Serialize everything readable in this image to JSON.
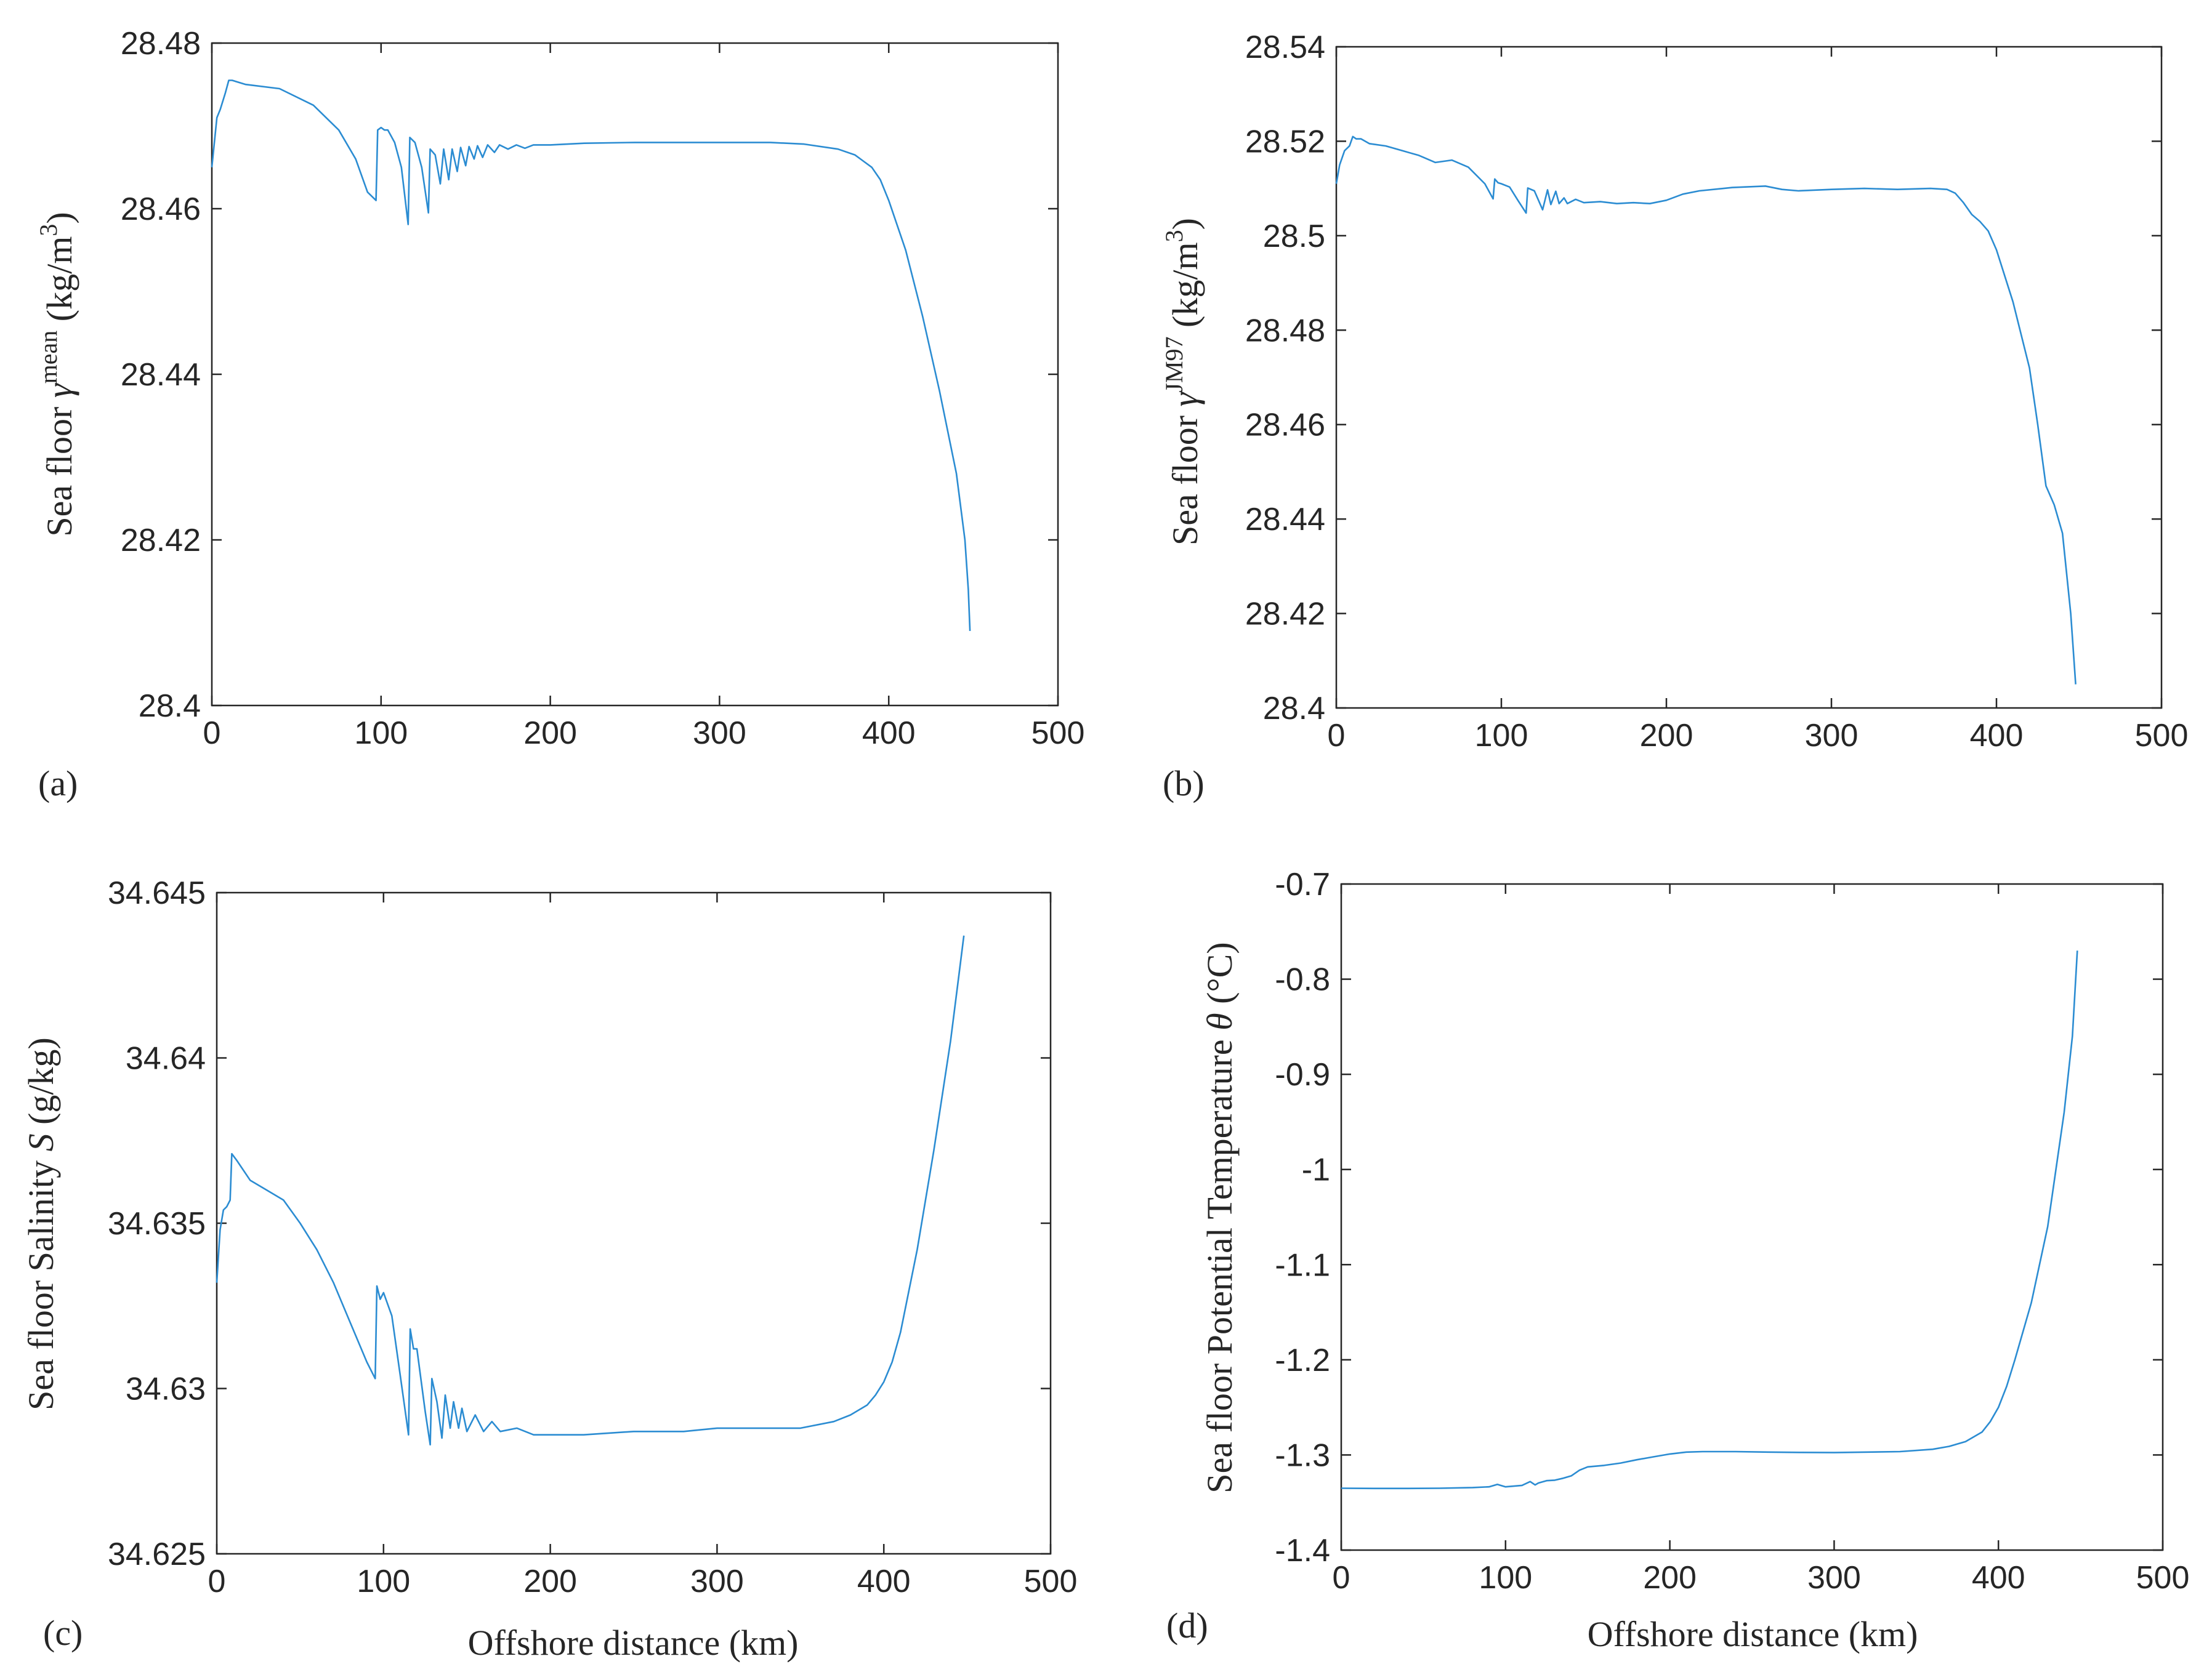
{
  "chart_data": [
    {
      "id": "a",
      "type": "line",
      "panel_label": "(a)",
      "xlabel": "",
      "ylabel_main": "Sea floor ",
      "ylabel_symbol": "γ",
      "ylabel_symbol_sup": "mean",
      "ylabel_unit": " (kg/m",
      "ylabel_unit_sup": "3",
      "ylabel_unit_end": ")",
      "xlim": [
        0,
        500
      ],
      "ylim": [
        28.4,
        28.48
      ],
      "xticks": [
        0,
        100,
        200,
        300,
        400,
        500
      ],
      "xtick_labels": [
        "0",
        "100",
        "200",
        "300",
        "400",
        "500"
      ],
      "yticks": [
        28.4,
        28.42,
        28.44,
        28.46,
        28.48
      ],
      "ytick_labels": [
        "28.4",
        "28.42",
        "28.44",
        "28.46",
        "28.48"
      ],
      "series": [
        {
          "name": "gamma_mean",
          "x": [
            0,
            3,
            5,
            8,
            10,
            12,
            20,
            40,
            60,
            75,
            85,
            92,
            97,
            98,
            100,
            102,
            104,
            108,
            112,
            116,
            117,
            120,
            124,
            128,
            129,
            132,
            135,
            137,
            140,
            142,
            145,
            147,
            150,
            152,
            155,
            157,
            160,
            163,
            167,
            170,
            175,
            180,
            185,
            190,
            200,
            220,
            250,
            300,
            330,
            350,
            370,
            380,
            390,
            395,
            400,
            410,
            420,
            430,
            440,
            445,
            447,
            448
          ],
          "values": [
            28.465,
            28.471,
            28.472,
            28.474,
            28.4755,
            28.4755,
            28.475,
            28.4745,
            28.4725,
            28.4695,
            28.466,
            28.462,
            28.461,
            28.4695,
            28.4698,
            28.4695,
            28.4695,
            28.468,
            28.465,
            28.4581,
            28.4686,
            28.468,
            28.465,
            28.4595,
            28.4672,
            28.4665,
            28.463,
            28.4672,
            28.4635,
            28.4672,
            28.4645,
            28.4674,
            28.4652,
            28.4675,
            28.466,
            28.4676,
            28.4662,
            28.4677,
            28.4668,
            28.4677,
            28.4672,
            28.4677,
            28.4673,
            28.4677,
            28.4677,
            28.4679,
            28.468,
            28.468,
            28.468,
            28.4678,
            28.4672,
            28.4665,
            28.465,
            28.4635,
            28.461,
            28.455,
            28.447,
            28.438,
            28.428,
            28.42,
            28.414,
            28.409
          ]
        }
      ]
    },
    {
      "id": "b",
      "type": "line",
      "panel_label": "(b)",
      "xlabel": "",
      "ylabel_main": "Sea floor ",
      "ylabel_symbol": "γ",
      "ylabel_symbol_sup": "JM97",
      "ylabel_unit": " (kg/m",
      "ylabel_unit_sup": "3",
      "ylabel_unit_end": ")",
      "xlim": [
        0,
        500
      ],
      "ylim": [
        28.4,
        28.54
      ],
      "xticks": [
        0,
        100,
        200,
        300,
        400,
        500
      ],
      "xtick_labels": [
        "0",
        "100",
        "200",
        "300",
        "400",
        "500"
      ],
      "yticks": [
        28.4,
        28.42,
        28.44,
        28.46,
        28.48,
        28.5,
        28.52,
        28.54
      ],
      "ytick_labels": [
        "28.4",
        "28.42",
        "28.44",
        "28.46",
        "28.48",
        "28.5",
        "28.52",
        "28.54"
      ],
      "series": [
        {
          "name": "gamma_JM97",
          "x": [
            0,
            2,
            5,
            8,
            10,
            12,
            15,
            20,
            30,
            40,
            50,
            60,
            70,
            80,
            90,
            95,
            96,
            98,
            100,
            105,
            110,
            115,
            116,
            120,
            125,
            128,
            130,
            133,
            135,
            138,
            140,
            145,
            150,
            160,
            170,
            180,
            190,
            200,
            210,
            220,
            240,
            260,
            270,
            280,
            300,
            320,
            340,
            360,
            370,
            375,
            380,
            385,
            390,
            395,
            400,
            410,
            420,
            425,
            430,
            435,
            440,
            445,
            448
          ],
          "values": [
            28.511,
            28.515,
            28.518,
            28.519,
            28.521,
            28.5205,
            28.5205,
            28.5195,
            28.519,
            28.518,
            28.517,
            28.5155,
            28.516,
            28.5145,
            28.511,
            28.5078,
            28.512,
            28.5112,
            28.511,
            28.5103,
            28.5075,
            28.5048,
            28.5101,
            28.5095,
            28.5055,
            28.5097,
            28.5066,
            28.5094,
            28.5068,
            28.508,
            28.5068,
            28.5077,
            28.507,
            28.5072,
            28.5068,
            28.507,
            28.5068,
            28.5075,
            28.5088,
            28.5095,
            28.5102,
            28.5105,
            28.5098,
            28.5095,
            28.5098,
            28.51,
            28.5098,
            28.51,
            28.5098,
            28.509,
            28.507,
            28.5045,
            28.503,
            28.501,
            28.497,
            28.486,
            28.472,
            28.46,
            28.447,
            28.443,
            28.437,
            28.42,
            28.405
          ]
        }
      ]
    },
    {
      "id": "c",
      "type": "line",
      "panel_label": "(c)",
      "xlabel": "Offshore distance (km)",
      "ylabel_main": "Sea floor Salinity ",
      "ylabel_symbol": "S",
      "ylabel_symbol_sup": "",
      "ylabel_unit": " (g/kg)",
      "ylabel_unit_sup": "",
      "ylabel_unit_end": "",
      "xlim": [
        0,
        500
      ],
      "ylim": [
        34.625,
        34.645
      ],
      "xticks": [
        0,
        100,
        200,
        300,
        400,
        500
      ],
      "xtick_labels": [
        "0",
        "100",
        "200",
        "300",
        "400",
        "500"
      ],
      "yticks": [
        34.625,
        34.63,
        34.635,
        34.64,
        34.645
      ],
      "ytick_labels": [
        "34.625",
        "34.63",
        "34.635",
        "34.64",
        "34.645"
      ],
      "series": [
        {
          "name": "salinity",
          "x": [
            0,
            2,
            4,
            6,
            8,
            9,
            12,
            20,
            30,
            40,
            50,
            60,
            70,
            80,
            90,
            95,
            96,
            98,
            100,
            105,
            110,
            115,
            116,
            118,
            120,
            125,
            128,
            129,
            132,
            135,
            137,
            140,
            142,
            145,
            147,
            150,
            155,
            160,
            165,
            170,
            180,
            190,
            200,
            220,
            250,
            280,
            300,
            330,
            350,
            370,
            380,
            390,
            395,
            400,
            405,
            410,
            420,
            430,
            440,
            445,
            448
          ],
          "values": [
            34.6332,
            34.6348,
            34.6354,
            34.6355,
            34.6357,
            34.6371,
            34.6369,
            34.6363,
            34.636,
            34.6357,
            34.635,
            34.6342,
            34.6332,
            34.632,
            34.6308,
            34.6303,
            34.6331,
            34.6327,
            34.6329,
            34.6322,
            34.6304,
            34.6286,
            34.6318,
            34.6312,
            34.6312,
            34.6293,
            34.6283,
            34.6303,
            34.6296,
            34.6285,
            34.6298,
            34.6288,
            34.6296,
            34.6288,
            34.6294,
            34.6287,
            34.6292,
            34.6287,
            34.629,
            34.6287,
            34.6288,
            34.6286,
            34.6286,
            34.6286,
            34.6287,
            34.6287,
            34.6288,
            34.6288,
            34.6288,
            34.629,
            34.6292,
            34.6295,
            34.6298,
            34.6302,
            34.6308,
            34.6317,
            34.6342,
            34.6372,
            34.6405,
            34.6425,
            34.6437
          ]
        }
      ]
    },
    {
      "id": "d",
      "type": "line",
      "panel_label": "(d)",
      "xlabel": "Offshore distance (km)",
      "ylabel_main": "Sea floor Potential Temperature ",
      "ylabel_symbol": "θ",
      "ylabel_symbol_sup": "",
      "ylabel_unit": " (°C)",
      "ylabel_unit_sup": "",
      "ylabel_unit_end": "",
      "xlim": [
        0,
        500
      ],
      "ylim": [
        -1.4,
        -0.7
      ],
      "xticks": [
        0,
        100,
        200,
        300,
        400,
        500
      ],
      "xtick_labels": [
        "0",
        "100",
        "200",
        "300",
        "400",
        "500"
      ],
      "yticks": [
        -1.4,
        -1.3,
        -1.2,
        -1.1,
        -1.0,
        -0.9,
        -0.8,
        -0.7
      ],
      "ytick_labels": [
        "-1.4",
        "-1.3",
        "-1.2",
        "-1.1",
        "-1",
        "-0.9",
        "-0.8",
        "-0.7"
      ],
      "series": [
        {
          "name": "theta",
          "x": [
            0,
            20,
            40,
            60,
            80,
            90,
            95,
            100,
            110,
            115,
            118,
            120,
            125,
            130,
            135,
            140,
            145,
            150,
            160,
            170,
            180,
            190,
            200,
            210,
            220,
            240,
            260,
            280,
            300,
            320,
            340,
            360,
            370,
            380,
            390,
            395,
            400,
            405,
            410,
            420,
            430,
            440,
            445,
            448
          ],
          "values": [
            -1.335,
            -1.3352,
            -1.3352,
            -1.335,
            -1.3343,
            -1.3335,
            -1.331,
            -1.3335,
            -1.332,
            -1.328,
            -1.3315,
            -1.3295,
            -1.327,
            -1.3265,
            -1.3245,
            -1.322,
            -1.316,
            -1.3125,
            -1.311,
            -1.3085,
            -1.305,
            -1.302,
            -1.299,
            -1.297,
            -1.2965,
            -1.2965,
            -1.297,
            -1.2973,
            -1.2975,
            -1.297,
            -1.2965,
            -1.294,
            -1.291,
            -1.286,
            -1.276,
            -1.265,
            -1.25,
            -1.228,
            -1.2,
            -1.14,
            -1.06,
            -0.94,
            -0.86,
            -0.77
          ]
        }
      ]
    }
  ]
}
